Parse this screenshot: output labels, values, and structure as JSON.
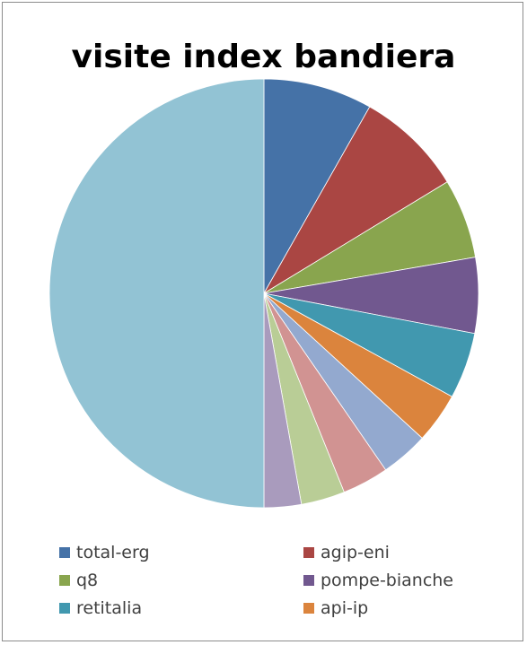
{
  "chart_data": {
    "type": "pie",
    "title": "visite index bandiera",
    "slices": [
      {
        "label": "total-erg",
        "value": 8.2,
        "color": "#4572A7"
      },
      {
        "label": "agip-eni",
        "value": 8.1,
        "color": "#AA4643"
      },
      {
        "label": "q8",
        "value": 6.0,
        "color": "#89A54E"
      },
      {
        "label": "pompe-bianche",
        "value": 5.7,
        "color": "#71588F"
      },
      {
        "label": "retitalia",
        "value": 5.0,
        "color": "#4198AF"
      },
      {
        "label": "api-ip",
        "value": 3.8,
        "color": "#DB843D"
      },
      {
        "label": "",
        "value": 3.6,
        "color": "#93A9CF"
      },
      {
        "label": "",
        "value": 3.5,
        "color": "#D19392"
      },
      {
        "label": "",
        "value": 3.3,
        "color": "#B9CD96"
      },
      {
        "label": "",
        "value": 2.8,
        "color": "#A99BBD"
      },
      {
        "label": "",
        "value": 50.0,
        "color": "#92C3D4"
      }
    ],
    "legend": {
      "position": "bottom",
      "visible_entries": [
        "total-erg",
        "agip-eni",
        "q8",
        "pompe-bianche",
        "retitalia",
        "api-ip"
      ]
    }
  }
}
